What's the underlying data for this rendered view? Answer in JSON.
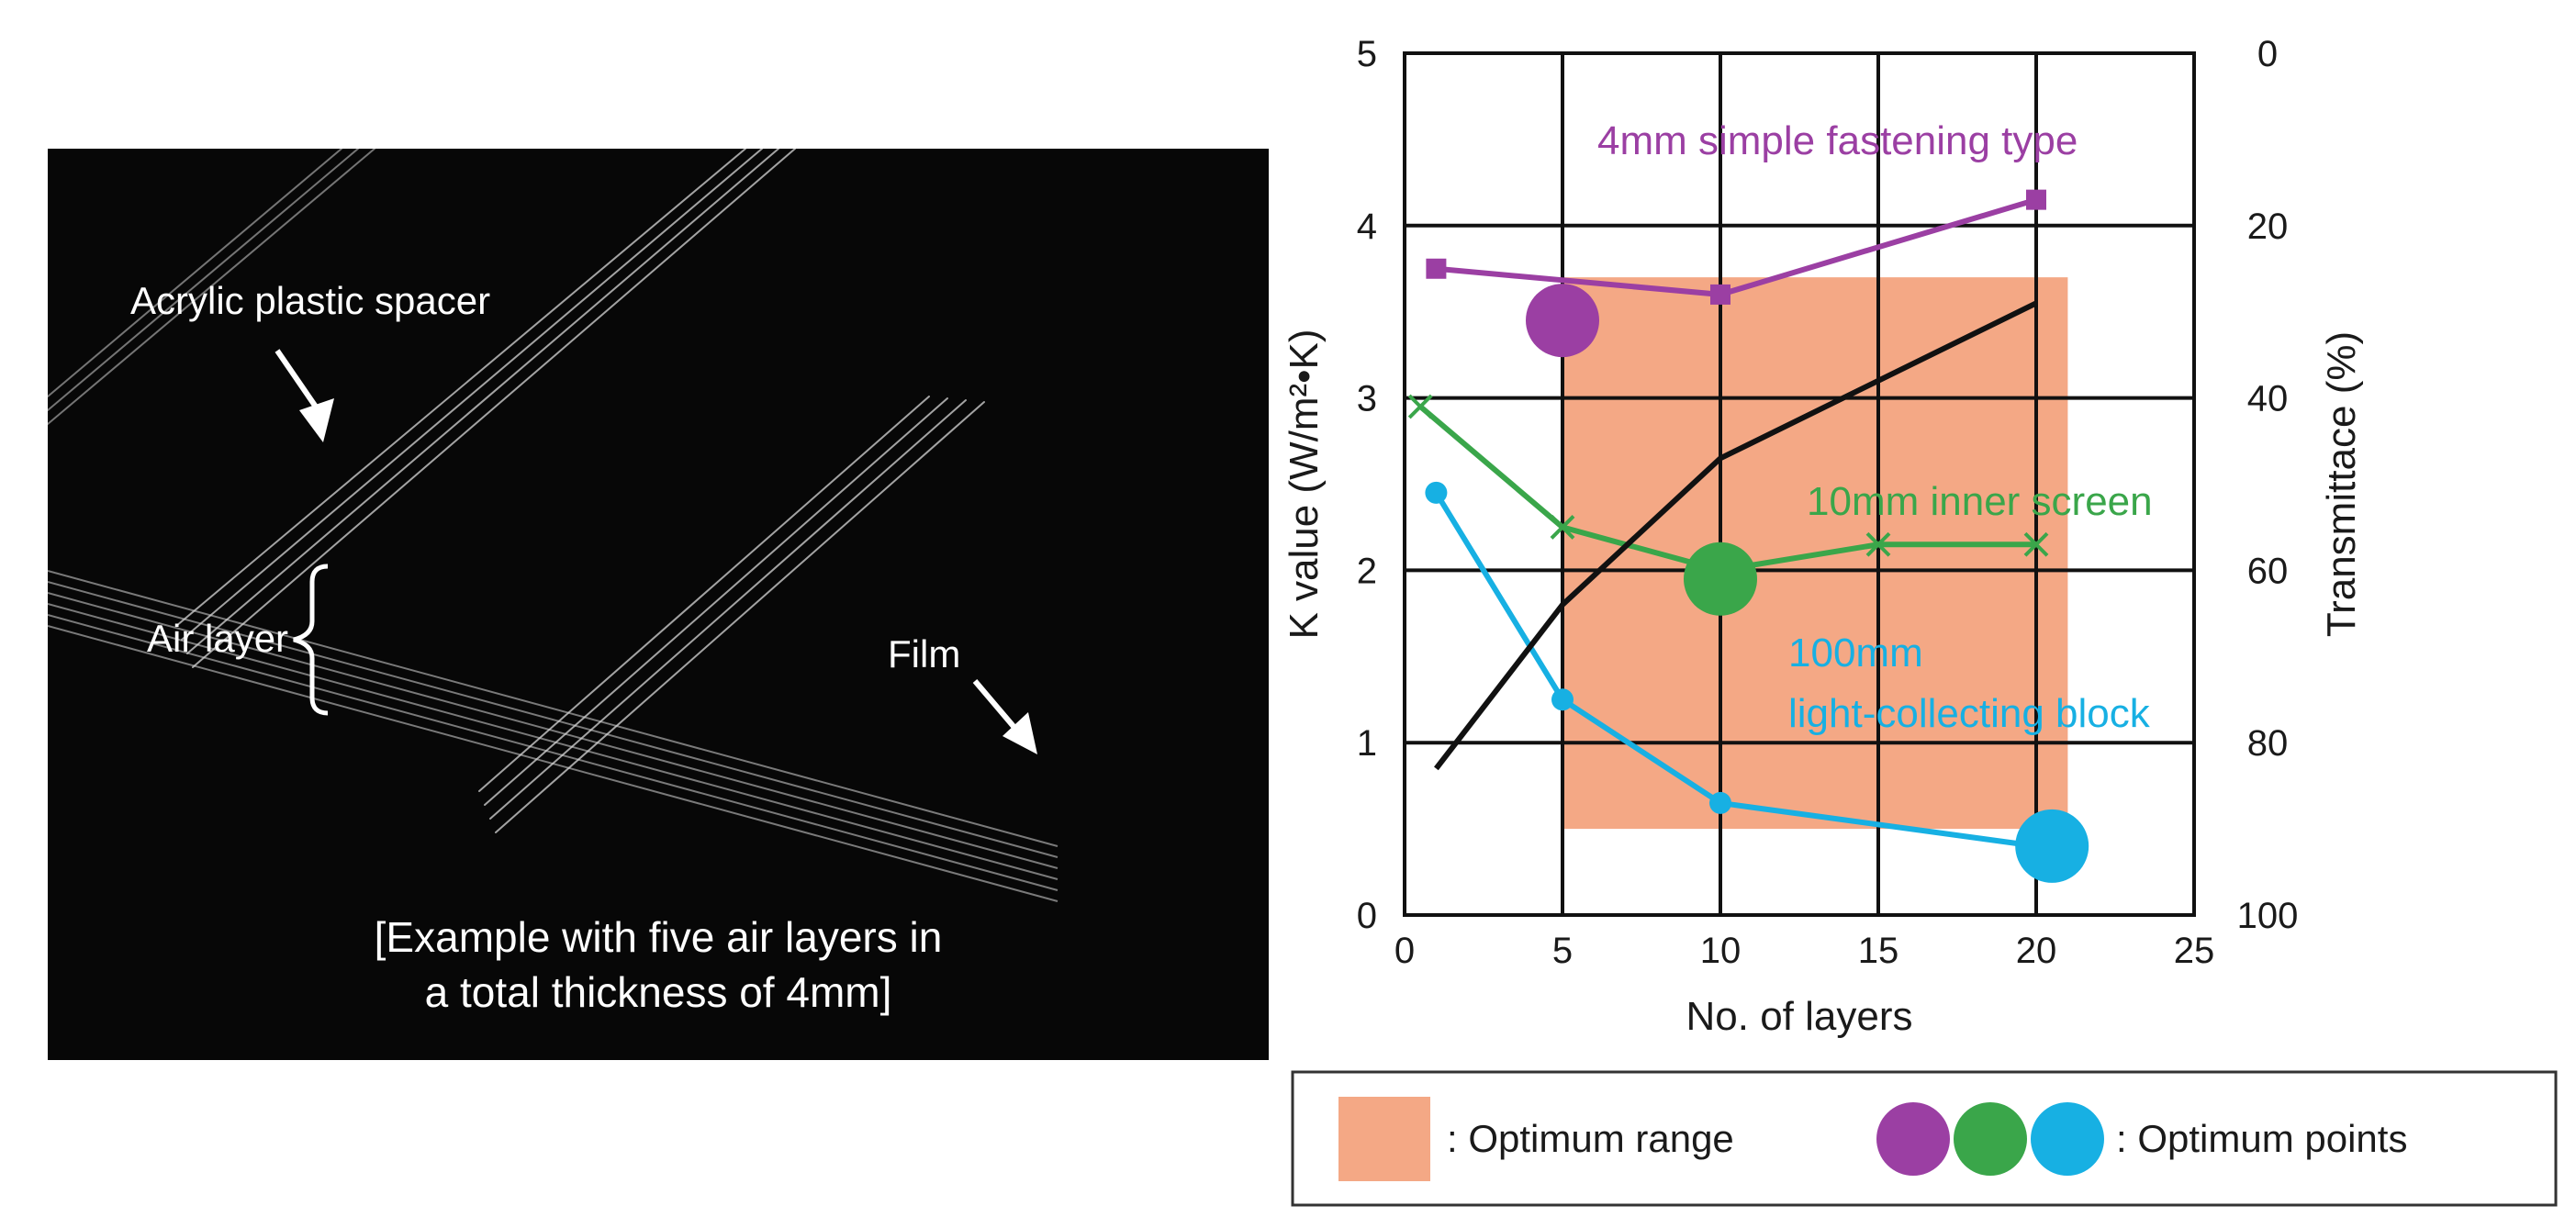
{
  "photo": {
    "labels": {
      "spacer": "Acrylic plastic spacer",
      "air_layer": "Air layer",
      "film": "Film"
    },
    "caption_line1": "[Example with five air layers in",
    "caption_line2": "a total thickness of 4mm]"
  },
  "chart_data": {
    "type": "line",
    "xlabel": "No. of layers",
    "ylabel": "K value (W/m²•K)",
    "y2label": "Transmittace (%)",
    "xlim": [
      0,
      25
    ],
    "ylim": [
      0,
      5
    ],
    "y2lim": [
      100,
      0
    ],
    "x_ticks": [
      0,
      5,
      10,
      15,
      20,
      25
    ],
    "y_ticks": [
      0,
      1,
      2,
      3,
      4,
      5
    ],
    "y2_ticks": [
      100,
      80,
      60,
      40,
      20,
      0
    ],
    "grid": true,
    "series": [
      {
        "name": "4mm simple fastening type",
        "color": "#9b3fa3",
        "marker": "square",
        "x": [
          1,
          10,
          20
        ],
        "y": [
          3.75,
          3.6,
          4.15
        ]
      },
      {
        "name": "10mm inner screen",
        "color": "#3aa64a",
        "marker": "x",
        "x": [
          0.5,
          5,
          10,
          15,
          20
        ],
        "y": [
          2.95,
          2.25,
          2.0,
          2.15,
          2.15
        ]
      },
      {
        "name": "100mm light-collecting block",
        "color": "#17b0e3",
        "marker": "circle",
        "x": [
          1,
          5,
          10,
          20
        ],
        "y": [
          2.45,
          1.25,
          0.65,
          0.4
        ]
      },
      {
        "name": "",
        "axis": "right",
        "color": "#111111",
        "marker": "none",
        "x": [
          1,
          5,
          10,
          15,
          20
        ],
        "y": [
          83,
          64,
          47,
          38,
          29
        ]
      }
    ],
    "optimum_range": {
      "x": [
        5,
        21
      ],
      "y": [
        0.5,
        3.7
      ]
    },
    "optimum_points": [
      {
        "x": 5,
        "y": 3.45,
        "color": "#9b3fa3"
      },
      {
        "x": 10,
        "y": 1.95,
        "color": "#3aa64a"
      },
      {
        "x": 20.5,
        "y": 0.4,
        "color": "#17b0e3"
      }
    ],
    "annotations": {
      "purple": "4mm simple fastening type",
      "green": "10mm inner screen",
      "blue_line1": "100mm",
      "blue_line2": "light-collecting block"
    },
    "legend": {
      "range_label": ": Optimum range",
      "points_label": ": Optimum points",
      "range_color": "#f4a885"
    }
  }
}
